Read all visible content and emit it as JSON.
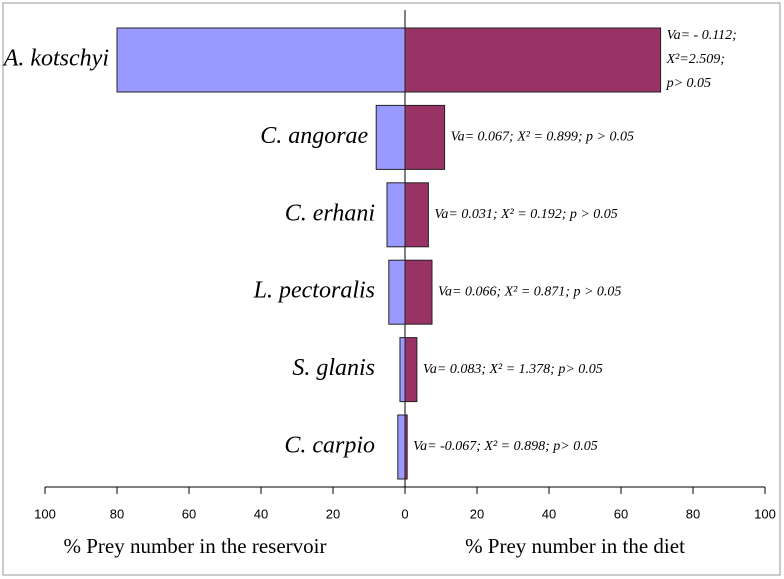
{
  "chart_data": [
    {
      "type": "hbar",
      "xlabel": "% Prey number in the reservoir",
      "categories": [
        "A. kotschyi",
        "C. angorae",
        "C. erhani",
        "L. pectoralis",
        "S. glanis",
        "C. carpio"
      ],
      "values": [
        80,
        8,
        5,
        4.5,
        1.4,
        2
      ],
      "color": "#9999ff",
      "xlim": [
        100,
        0
      ],
      "xticks": [
        100,
        80,
        60,
        40,
        20
      ]
    },
    {
      "type": "hbar",
      "xlabel": "% Prey number in the diet",
      "values": [
        71,
        11,
        6.5,
        7.5,
        3.3,
        0.6
      ],
      "color": "#993366",
      "annotations": [
        [
          "Va= - 0.112;",
          "X²=2.509;",
          "p> 0.05"
        ],
        [
          "Va= 0.067; X² = 0.899; p > 0.05"
        ],
        [
          "Va= 0.031; X² = 0.192; p > 0.05"
        ],
        [
          "Va= 0.066; X² = 0.871; p > 0.05"
        ],
        [
          "Va= 0.083; X² = 1.378; p> 0.05"
        ],
        [
          "Va= -0.067; X² = 0.898; p> 0.05"
        ]
      ],
      "xlim": [
        0,
        100
      ],
      "xticks": [
        0,
        20,
        40,
        60,
        80,
        100
      ]
    }
  ]
}
